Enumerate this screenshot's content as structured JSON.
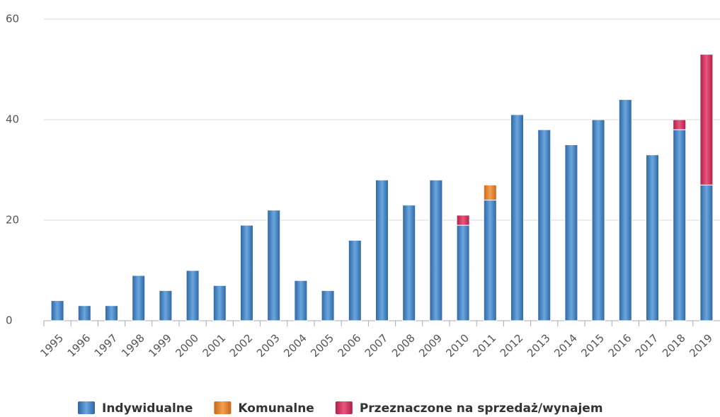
{
  "chart_data": {
    "type": "bar",
    "stacked": true,
    "categories": [
      "1995",
      "1996",
      "1997",
      "1998",
      "1999",
      "2000",
      "2001",
      "2002",
      "2003",
      "2004",
      "2005",
      "2006",
      "2007",
      "2008",
      "2009",
      "2010",
      "2011",
      "2012",
      "2013",
      "2014",
      "2015",
      "2016",
      "2017",
      "2018",
      "2019"
    ],
    "series": [
      {
        "name": "Indywidualne",
        "color": "#3a78b8",
        "values": [
          4,
          3,
          3,
          9,
          6,
          10,
          7,
          19,
          22,
          8,
          6,
          16,
          28,
          23,
          28,
          19,
          24,
          41,
          38,
          35,
          40,
          44,
          33,
          38,
          27
        ]
      },
      {
        "name": "Komunalne",
        "color": "#e07b22",
        "values": [
          0,
          0,
          0,
          0,
          0,
          0,
          0,
          0,
          0,
          0,
          0,
          0,
          0,
          0,
          0,
          0,
          3,
          0,
          0,
          0,
          0,
          0,
          0,
          0,
          0
        ]
      },
      {
        "name": "Przeznaczone na sprzedaż/wynajem",
        "color": "#c4234f",
        "values": [
          0,
          0,
          0,
          0,
          0,
          0,
          0,
          0,
          0,
          0,
          0,
          0,
          0,
          0,
          0,
          2,
          0,
          0,
          0,
          0,
          0,
          0,
          0,
          2,
          26
        ]
      }
    ],
    "ylim": [
      0,
      60
    ],
    "yticks": [
      0,
      20,
      40,
      60
    ],
    "grid": true
  }
}
